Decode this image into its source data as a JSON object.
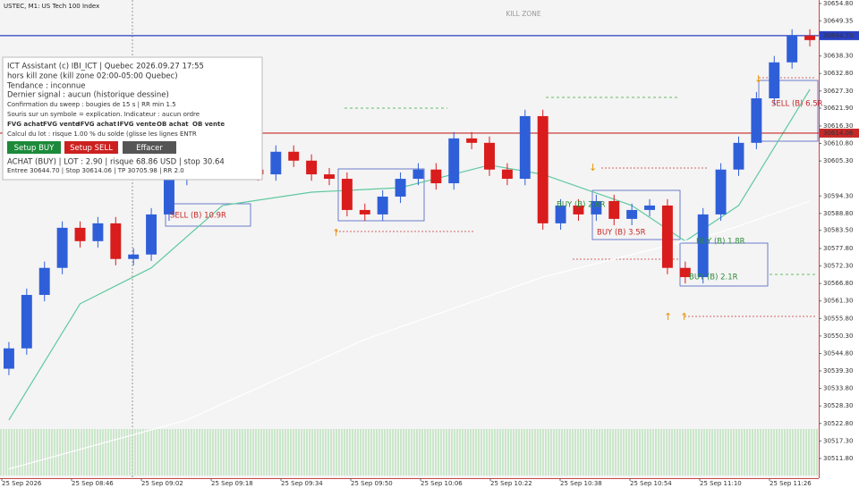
{
  "chart_data": {
    "type": "candlestick",
    "title": "USTEC, M1: US Tech 100 Index",
    "zone_label": "KILL ZONE",
    "open": [
      30540.0,
      30546.4,
      30563.2,
      30571.7,
      30584.3,
      30580.1,
      30585.7,
      30574.5,
      30575.9,
      30588.5,
      30599.7,
      30608.2,
      30604.0,
      30606.8,
      30602.6,
      30601.1,
      30608.2,
      30605.4,
      30601.1,
      30599.7,
      30589.9,
      30588.5,
      30594.1,
      30599.7,
      30602.6,
      30598.3,
      30612.4,
      30611.0,
      30602.6,
      30599.7,
      30619.4,
      30585.7,
      30591.3,
      30588.5,
      30592.7,
      30587.1,
      30589.9,
      30591.3,
      30571.7,
      30568.8,
      30588.5,
      30602.6,
      30611.0,
      30625.0,
      30636.3,
      30644.7
    ],
    "high": [
      30548.4,
      30565.2,
      30573.7,
      30586.3,
      30586.3,
      30587.7,
      30587.7,
      30577.9,
      30590.5,
      30601.7,
      30610.2,
      30610.2,
      30608.8,
      30608.8,
      30604.6,
      30610.2,
      30610.2,
      30607.4,
      30603.1,
      30601.7,
      30591.9,
      30596.1,
      30601.7,
      30604.6,
      30604.6,
      30614.4,
      30614.4,
      30613.0,
      30604.6,
      30621.4,
      30621.4,
      30593.3,
      30593.3,
      30594.7,
      30594.7,
      30591.9,
      30593.3,
      30593.3,
      30573.7,
      30590.5,
      30604.6,
      30613.0,
      30627.0,
      30638.3,
      30646.7,
      30646.7
    ],
    "low": [
      30538.0,
      30544.4,
      30561.2,
      30569.7,
      30578.1,
      30578.1,
      30572.5,
      30572.5,
      30573.9,
      30586.5,
      30597.7,
      30602.0,
      30602.0,
      30600.6,
      30599.1,
      30599.1,
      30603.4,
      30599.1,
      30597.7,
      30587.9,
      30586.5,
      30586.5,
      30592.1,
      30597.7,
      30596.3,
      30596.3,
      30609.0,
      30600.6,
      30597.7,
      30597.7,
      30583.7,
      30583.7,
      30586.5,
      30586.5,
      30585.1,
      30585.1,
      30587.9,
      30569.7,
      30566.8,
      30566.8,
      30586.5,
      30600.6,
      30609.0,
      30623.0,
      30634.3,
      30641.3
    ],
    "close": [
      30546.4,
      30563.2,
      30571.7,
      30584.3,
      30580.1,
      30585.7,
      30574.5,
      30575.9,
      30588.5,
      30599.7,
      30608.2,
      30604.0,
      30606.8,
      30602.6,
      30601.1,
      30608.2,
      30605.4,
      30601.1,
      30599.7,
      30589.9,
      30588.5,
      30594.1,
      30599.7,
      30602.6,
      30598.3,
      30612.4,
      30611.0,
      30602.6,
      30599.7,
      30619.4,
      30585.7,
      30591.3,
      30588.5,
      30592.7,
      30587.1,
      30589.9,
      30591.3,
      30571.7,
      30568.8,
      30588.5,
      30602.6,
      30611.0,
      30625.0,
      30636.3,
      30644.7,
      30643.3
    ],
    "up_color": "#2f5fd8",
    "down_color": "#d91c1c",
    "overlays": [
      {
        "color": "#5fc9a0",
        "x": [
          0,
          4,
          8,
          12,
          17,
          22,
          27,
          30,
          35,
          38,
          41,
          45
        ],
        "values": [
          30523.9,
          30560.4,
          30571.7,
          30591.3,
          30595.5,
          30596.9,
          30604.0,
          30601.1,
          30591.3,
          30580.1,
          30591.3,
          30627.8
        ]
      },
      {
        "color": "#ffffff",
        "x": [
          0,
          10,
          20,
          30,
          40,
          45
        ],
        "values": [
          30508.5,
          30523.9,
          30549.2,
          30568.8,
          30582.9,
          30592.7
        ]
      }
    ],
    "levels": [
      {
        "value": 30644.7,
        "label": "30644.70",
        "color": "#2a3fbf"
      },
      {
        "value": 30614.06,
        "label": "30614.06",
        "color": "#c62828"
      }
    ],
    "ylim": [
      30505.6,
      30655.9
    ],
    "yticks": [
      {
        "value": 30654.8,
        "label": "30654.80"
      },
      30649.35,
      {
        "value": 30638.3,
        "label": "30638.30"
      },
      {
        "value": 30632.8,
        "label": "30632.80"
      },
      {
        "value": 30627.3,
        "label": "30627.30"
      },
      {
        "value": 30621.9,
        "label": "30621.90"
      },
      {
        "value": 30616.3,
        "label": "30616.30"
      },
      {
        "value": 30610.8,
        "label": "30610.80"
      },
      {
        "value": 30605.3,
        "label": "30605.30"
      },
      {
        "value": 30594.3,
        "label": "30594.30"
      },
      {
        "value": 30588.8,
        "label": "30588.80"
      },
      {
        "value": 30583.5,
        "label": "30583.50"
      },
      {
        "value": 30577.8,
        "label": "30577.80"
      },
      {
        "value": 30572.3,
        "label": "30572.30"
      },
      {
        "value": 30566.8,
        "label": "30566.80"
      },
      {
        "value": 30561.3,
        "label": "30561.30"
      },
      {
        "value": 30555.8,
        "label": "30555.80"
      },
      {
        "value": 30550.3,
        "label": "30550.30"
      },
      {
        "value": 30544.8,
        "label": "30544.80"
      },
      {
        "value": 30539.3,
        "label": "30539.30"
      },
      {
        "value": 30533.8,
        "label": "30533.80"
      },
      {
        "value": 30528.3,
        "label": "30528.30"
      },
      {
        "value": 30522.8,
        "label": "30522.80"
      },
      {
        "value": 30517.3,
        "label": "30517.30"
      },
      {
        "value": 30511.8,
        "label": "30511.80"
      }
    ],
    "xlabels": [
      "25 Sep 2026",
      "25 Sep 08:46",
      "25 Sep 09:02",
      "25 Sep 09:18",
      "25 Sep 09:34",
      "25 Sep 09:50",
      "25 Sep 10:06",
      "25 Sep 10:22",
      "25 Sep 10:38",
      "25 Sep 10:54",
      "25 Sep 11:10",
      "25 Sep 11:26"
    ],
    "annotations": [
      "SELL (B) 10.9R",
      "BUY (B) 2.6R",
      "BUY (B) 3.5R",
      "BUY (B) 1.8R",
      "BUY (B) 2.1R",
      "SELL (B) 6.5R"
    ]
  },
  "panel": {
    "title": "ICT Assistant (c) IBI_ICT   |   Quebec 2026.09.27 17:55",
    "lines": [
      "hors kill zone (kill zone 02:00-05:00 Quebec)",
      "Tendance : inconnue",
      "Dernier signal : aucun (historique dessine)",
      "Confirmation du sweep : bougies de 15 s  |  RR min 1.5",
      "Souris sur un symbole = explication. Indicateur : aucun ordre"
    ],
    "legend": [
      "FVG achat",
      "FVG vente",
      "IFVG achat",
      "IFVG vente",
      "OB achat",
      "OB vente"
    ],
    "lot": "Calcul du lot : risque 1.00 % du solde (glisse les lignes ENTR",
    "buttons": [
      "Setup BUY",
      "Setup SELL",
      "Effacer"
    ],
    "order": "ACHAT (BUY)  |  LOT : 2.90  |  risque 68.86 USD  |  stop 30.64",
    "prices": "Entree 30644.70  |  Stop 30614.06  |  TP 30705.98  |  RR 2.0"
  }
}
